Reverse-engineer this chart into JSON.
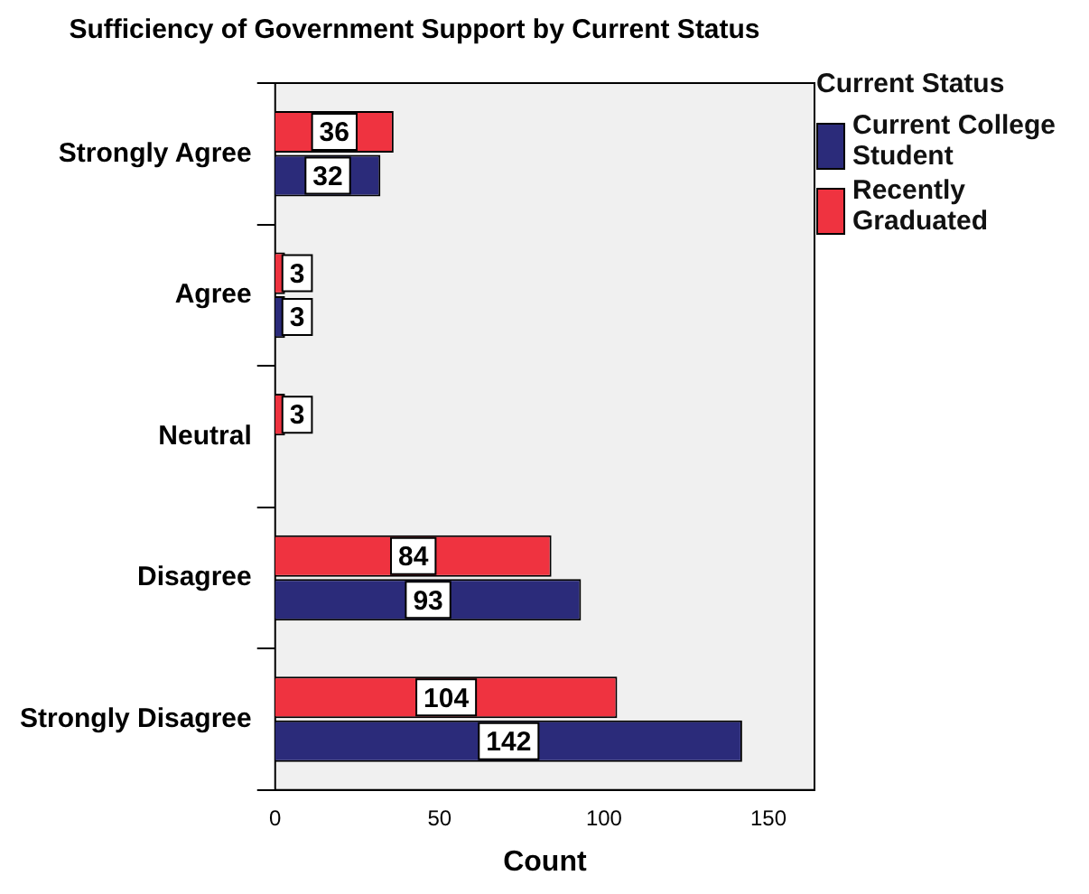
{
  "chart_data": {
    "type": "bar",
    "orientation": "horizontal",
    "title": "Sufficiency of Government Support by Current Status",
    "xlabel": "Count",
    "legend_title": "Current Status",
    "legend": "top right",
    "categories": [
      "Strongly Agree",
      "Agree",
      "Neutral",
      "Disagree",
      "Strongly Disagree"
    ],
    "series": [
      {
        "name": "Current College Student",
        "color": "#2b2b7a",
        "values": [
          32,
          3,
          null,
          93,
          142
        ]
      },
      {
        "name": "Recently Graduated",
        "color": "#ef3340",
        "values": [
          36,
          3,
          3,
          84,
          104
        ]
      }
    ],
    "xlim": [
      0,
      164
    ],
    "xticks": [
      0,
      50,
      100,
      150
    ],
    "grid": false,
    "data_labels": true
  }
}
